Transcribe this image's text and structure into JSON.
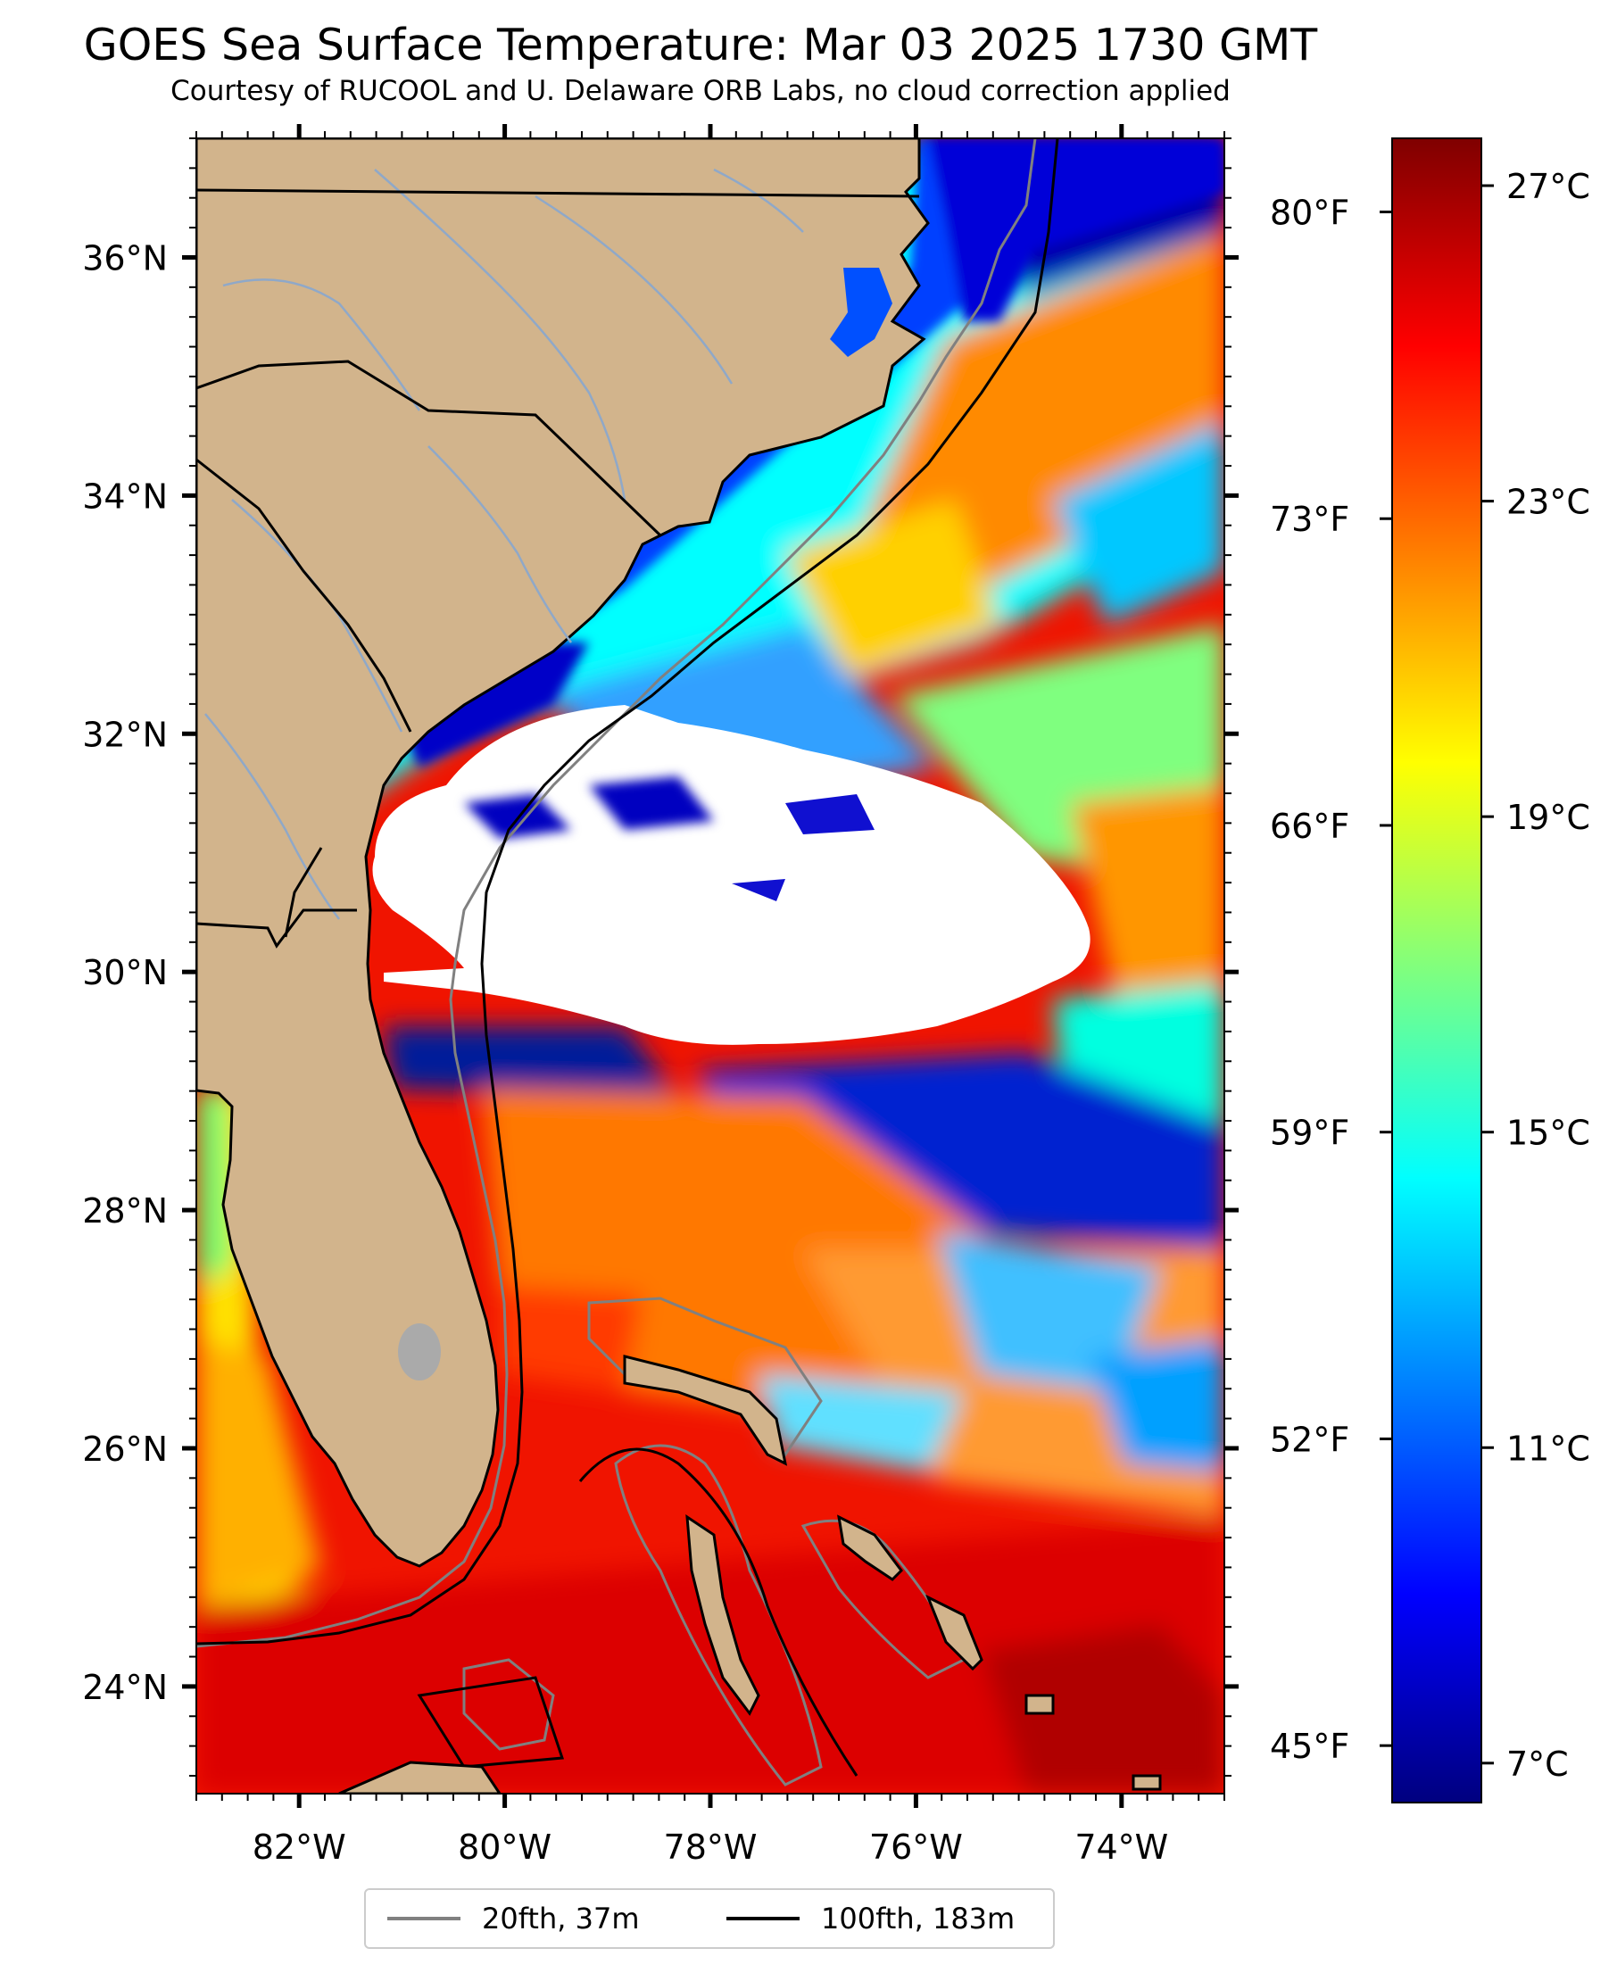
{
  "title": "GOES Sea Surface Temperature: Mar 03 2025 1730 GMT",
  "subtitle": "Courtesy of RUCOOL and U. Delaware ORB Labs, no cloud correction applied",
  "map": {
    "lon_range": [
      -83,
      -73
    ],
    "lat_range": [
      23.1,
      37
    ],
    "longitude_ticks": [
      {
        "value": -82,
        "label": "82°W"
      },
      {
        "value": -80,
        "label": "80°W"
      },
      {
        "value": -78,
        "label": "78°W"
      },
      {
        "value": -76,
        "label": "76°W"
      },
      {
        "value": -74,
        "label": "74°W"
      }
    ],
    "latitude_ticks": [
      {
        "value": 36,
        "label": "36°N"
      },
      {
        "value": 34,
        "label": "34°N"
      },
      {
        "value": 32,
        "label": "32°N"
      },
      {
        "value": 30,
        "label": "30°N"
      },
      {
        "value": 28,
        "label": "28°N"
      },
      {
        "value": 26,
        "label": "26°N"
      },
      {
        "value": 24,
        "label": "24°N"
      }
    ],
    "colors": {
      "land": "#d2b48c",
      "cloud_mask": "#ffffff",
      "state_borders": "#000000",
      "rivers": "#8fa8c8"
    }
  },
  "colorbar": {
    "range_c": [
      6.5,
      27.6
    ],
    "celsius_ticks": [
      {
        "value": 27,
        "label": "27°C"
      },
      {
        "value": 23,
        "label": "23°C"
      },
      {
        "value": 19,
        "label": "19°C"
      },
      {
        "value": 15,
        "label": "15°C"
      },
      {
        "value": 11,
        "label": "11°C"
      },
      {
        "value": 7,
        "label": "7°C"
      }
    ],
    "fahrenheit_ticks": [
      {
        "value": 80,
        "label": "80°F"
      },
      {
        "value": 73,
        "label": "73°F"
      },
      {
        "value": 66,
        "label": "66°F"
      },
      {
        "value": 59,
        "label": "59°F"
      },
      {
        "value": 52,
        "label": "52°F"
      },
      {
        "value": 45,
        "label": "45°F"
      }
    ],
    "colormap": [
      "#00007f",
      "#0000ff",
      "#007fff",
      "#00ffff",
      "#7fff7f",
      "#ffff00",
      "#ff7f00",
      "#ff0000",
      "#7f0000"
    ]
  },
  "legend": {
    "items": [
      {
        "label": "20fth, 37m",
        "color": "#808080"
      },
      {
        "label": "100fth, 183m",
        "color": "#000000"
      }
    ]
  }
}
